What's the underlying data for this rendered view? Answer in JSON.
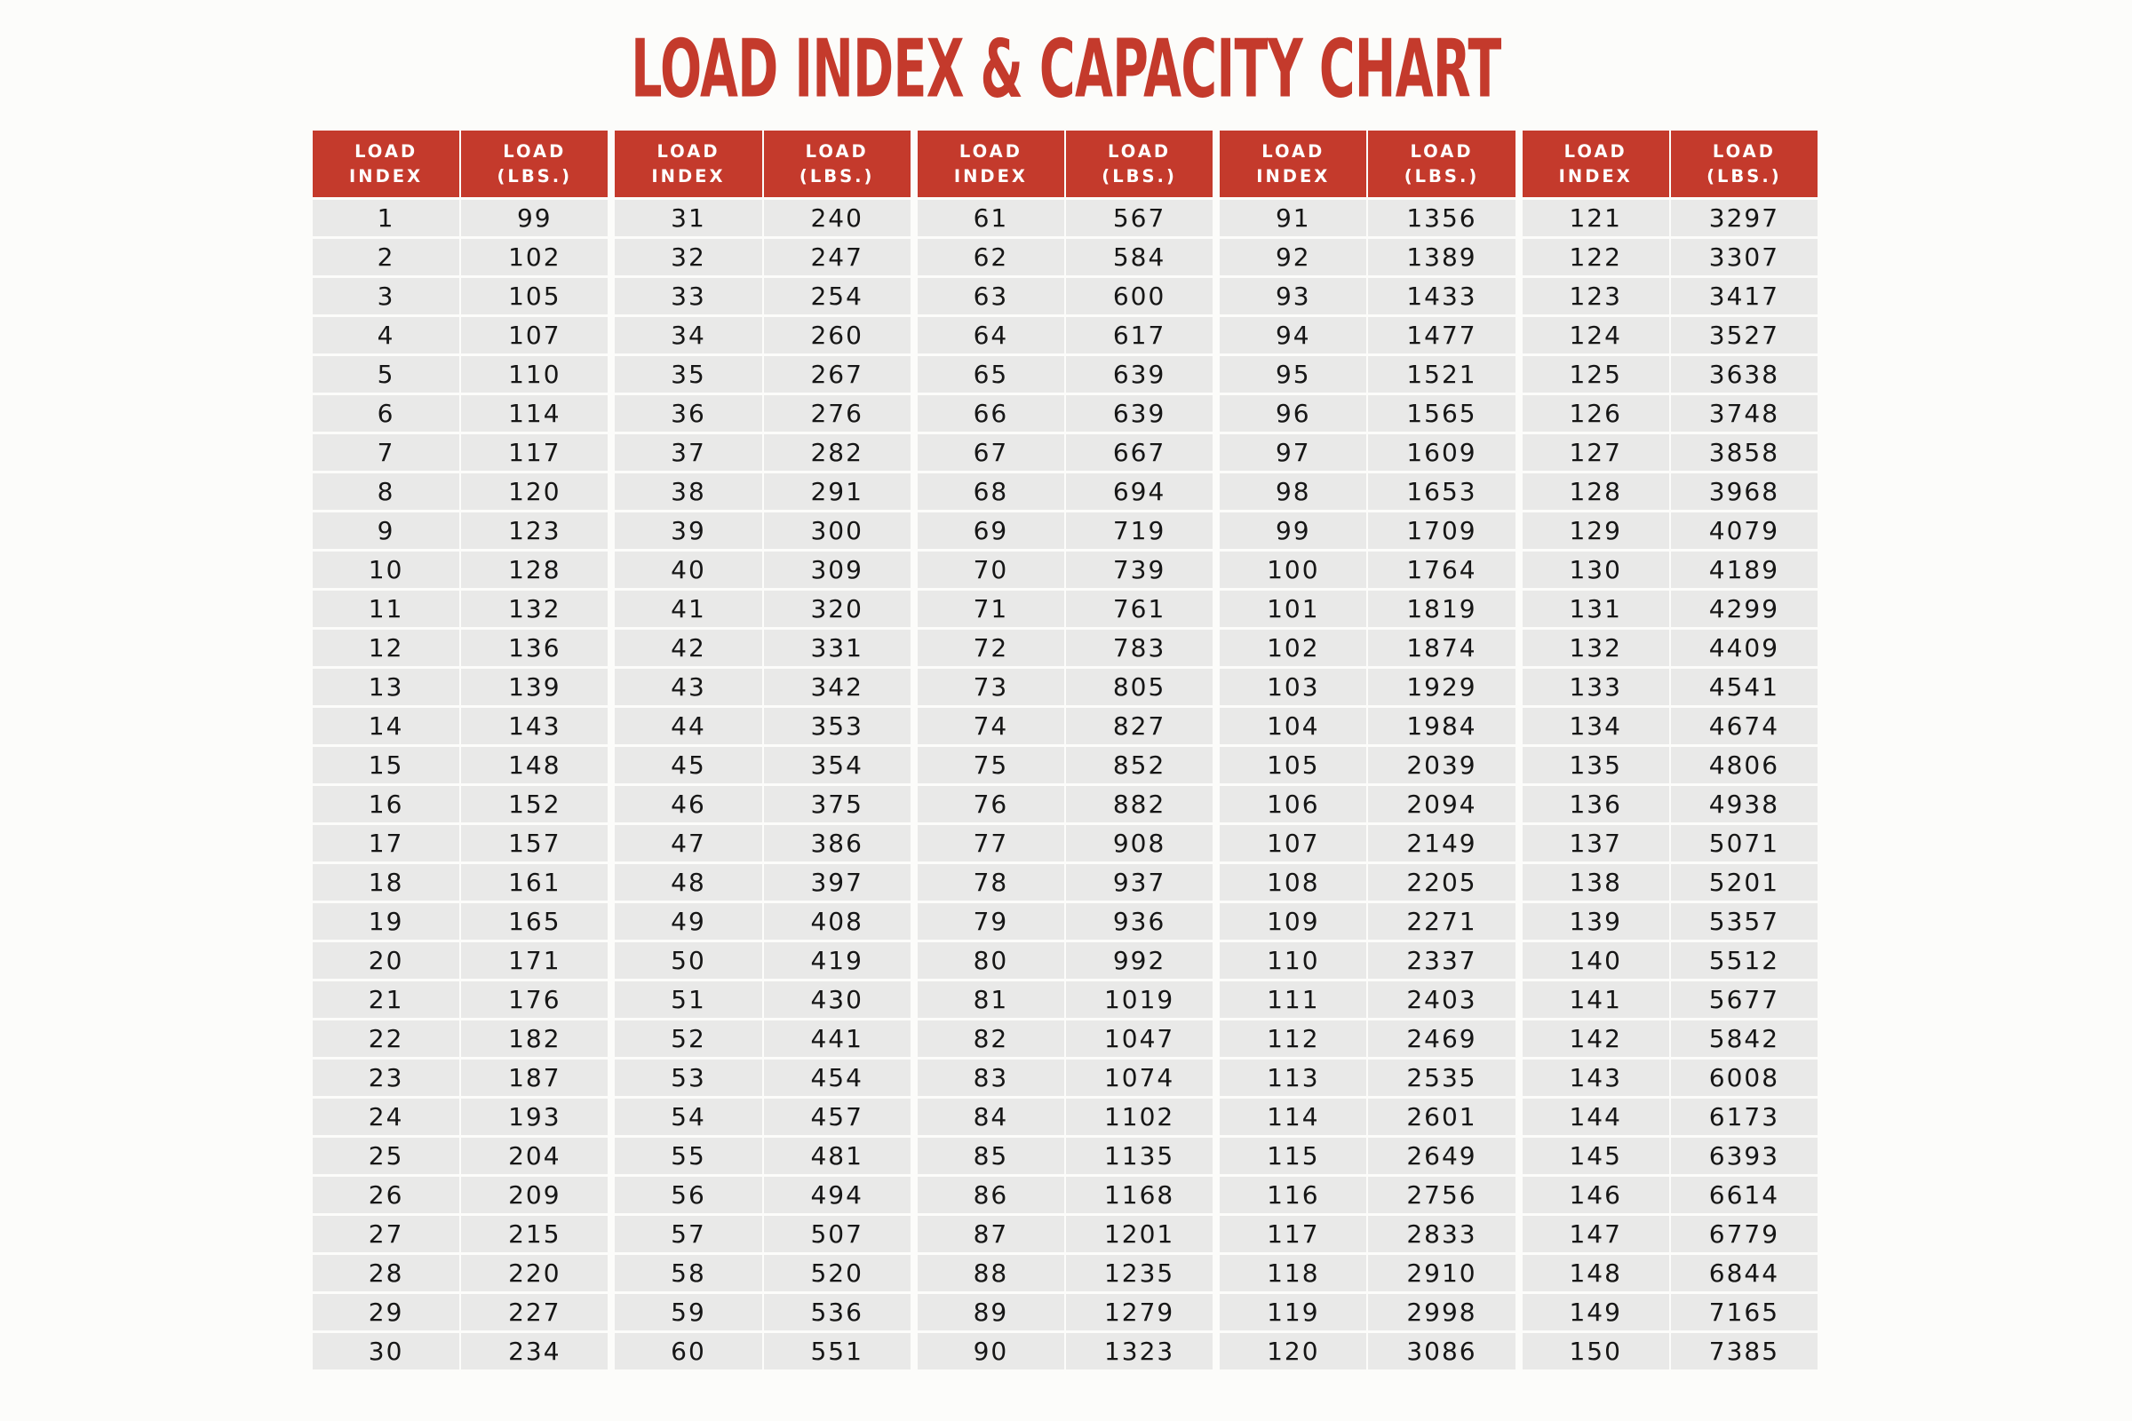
{
  "title": "LOAD INDEX & CAPACITY CHART",
  "colors": {
    "accent_red": "#c43a2c",
    "header_text": "#ffffff",
    "cell_bg": "#e9e9e8",
    "page_bg": "#fcfcfa",
    "value_text": "#161616"
  },
  "table": {
    "column_pairs": 5,
    "rows_per_column": 30,
    "header_index_lines": [
      "LOAD",
      "INDEX"
    ],
    "header_lbs_lines": [
      "LOAD",
      "(LBS.)"
    ]
  },
  "chart_data": {
    "type": "table",
    "title": "LOAD INDEX & CAPACITY CHART",
    "columns": [
      "LOAD INDEX",
      "LOAD (LBS.)"
    ],
    "column_pairs": 5,
    "rows_per_column": 30,
    "rows": [
      [
        1,
        99
      ],
      [
        2,
        102
      ],
      [
        3,
        105
      ],
      [
        4,
        107
      ],
      [
        5,
        110
      ],
      [
        6,
        114
      ],
      [
        7,
        117
      ],
      [
        8,
        120
      ],
      [
        9,
        123
      ],
      [
        10,
        128
      ],
      [
        11,
        132
      ],
      [
        12,
        136
      ],
      [
        13,
        139
      ],
      [
        14,
        143
      ],
      [
        15,
        148
      ],
      [
        16,
        152
      ],
      [
        17,
        157
      ],
      [
        18,
        161
      ],
      [
        19,
        165
      ],
      [
        20,
        171
      ],
      [
        21,
        176
      ],
      [
        22,
        182
      ],
      [
        23,
        187
      ],
      [
        24,
        193
      ],
      [
        25,
        204
      ],
      [
        26,
        209
      ],
      [
        27,
        215
      ],
      [
        28,
        220
      ],
      [
        29,
        227
      ],
      [
        30,
        234
      ],
      [
        31,
        240
      ],
      [
        32,
        247
      ],
      [
        33,
        254
      ],
      [
        34,
        260
      ],
      [
        35,
        267
      ],
      [
        36,
        276
      ],
      [
        37,
        282
      ],
      [
        38,
        291
      ],
      [
        39,
        300
      ],
      [
        40,
        309
      ],
      [
        41,
        320
      ],
      [
        42,
        331
      ],
      [
        43,
        342
      ],
      [
        44,
        353
      ],
      [
        45,
        354
      ],
      [
        46,
        375
      ],
      [
        47,
        386
      ],
      [
        48,
        397
      ],
      [
        49,
        408
      ],
      [
        50,
        419
      ],
      [
        51,
        430
      ],
      [
        52,
        441
      ],
      [
        53,
        454
      ],
      [
        54,
        457
      ],
      [
        55,
        481
      ],
      [
        56,
        494
      ],
      [
        57,
        507
      ],
      [
        58,
        520
      ],
      [
        59,
        536
      ],
      [
        60,
        551
      ],
      [
        61,
        567
      ],
      [
        62,
        584
      ],
      [
        63,
        600
      ],
      [
        64,
        617
      ],
      [
        65,
        639
      ],
      [
        66,
        639
      ],
      [
        67,
        667
      ],
      [
        68,
        694
      ],
      [
        69,
        719
      ],
      [
        70,
        739
      ],
      [
        71,
        761
      ],
      [
        72,
        783
      ],
      [
        73,
        805
      ],
      [
        74,
        827
      ],
      [
        75,
        852
      ],
      [
        76,
        882
      ],
      [
        77,
        908
      ],
      [
        78,
        937
      ],
      [
        79,
        936
      ],
      [
        80,
        992
      ],
      [
        81,
        1019
      ],
      [
        82,
        1047
      ],
      [
        83,
        1074
      ],
      [
        84,
        1102
      ],
      [
        85,
        1135
      ],
      [
        86,
        1168
      ],
      [
        87,
        1201
      ],
      [
        88,
        1235
      ],
      [
        89,
        1279
      ],
      [
        90,
        1323
      ],
      [
        91,
        1356
      ],
      [
        92,
        1389
      ],
      [
        93,
        1433
      ],
      [
        94,
        1477
      ],
      [
        95,
        1521
      ],
      [
        96,
        1565
      ],
      [
        97,
        1609
      ],
      [
        98,
        1653
      ],
      [
        99,
        1709
      ],
      [
        100,
        1764
      ],
      [
        101,
        1819
      ],
      [
        102,
        1874
      ],
      [
        103,
        1929
      ],
      [
        104,
        1984
      ],
      [
        105,
        2039
      ],
      [
        106,
        2094
      ],
      [
        107,
        2149
      ],
      [
        108,
        2205
      ],
      [
        109,
        2271
      ],
      [
        110,
        2337
      ],
      [
        111,
        2403
      ],
      [
        112,
        2469
      ],
      [
        113,
        2535
      ],
      [
        114,
        2601
      ],
      [
        115,
        2649
      ],
      [
        116,
        2756
      ],
      [
        117,
        2833
      ],
      [
        118,
        2910
      ],
      [
        119,
        2998
      ],
      [
        120,
        3086
      ],
      [
        121,
        3297
      ],
      [
        122,
        3307
      ],
      [
        123,
        3417
      ],
      [
        124,
        3527
      ],
      [
        125,
        3638
      ],
      [
        126,
        3748
      ],
      [
        127,
        3858
      ],
      [
        128,
        3968
      ],
      [
        129,
        4079
      ],
      [
        130,
        4189
      ],
      [
        131,
        4299
      ],
      [
        132,
        4409
      ],
      [
        133,
        4541
      ],
      [
        134,
        4674
      ],
      [
        135,
        4806
      ],
      [
        136,
        4938
      ],
      [
        137,
        5071
      ],
      [
        138,
        5201
      ],
      [
        139,
        5357
      ],
      [
        140,
        5512
      ],
      [
        141,
        5677
      ],
      [
        142,
        5842
      ],
      [
        143,
        6008
      ],
      [
        144,
        6173
      ],
      [
        145,
        6393
      ],
      [
        146,
        6614
      ],
      [
        147,
        6779
      ],
      [
        148,
        6844
      ],
      [
        149,
        7165
      ],
      [
        150,
        7385
      ]
    ]
  }
}
